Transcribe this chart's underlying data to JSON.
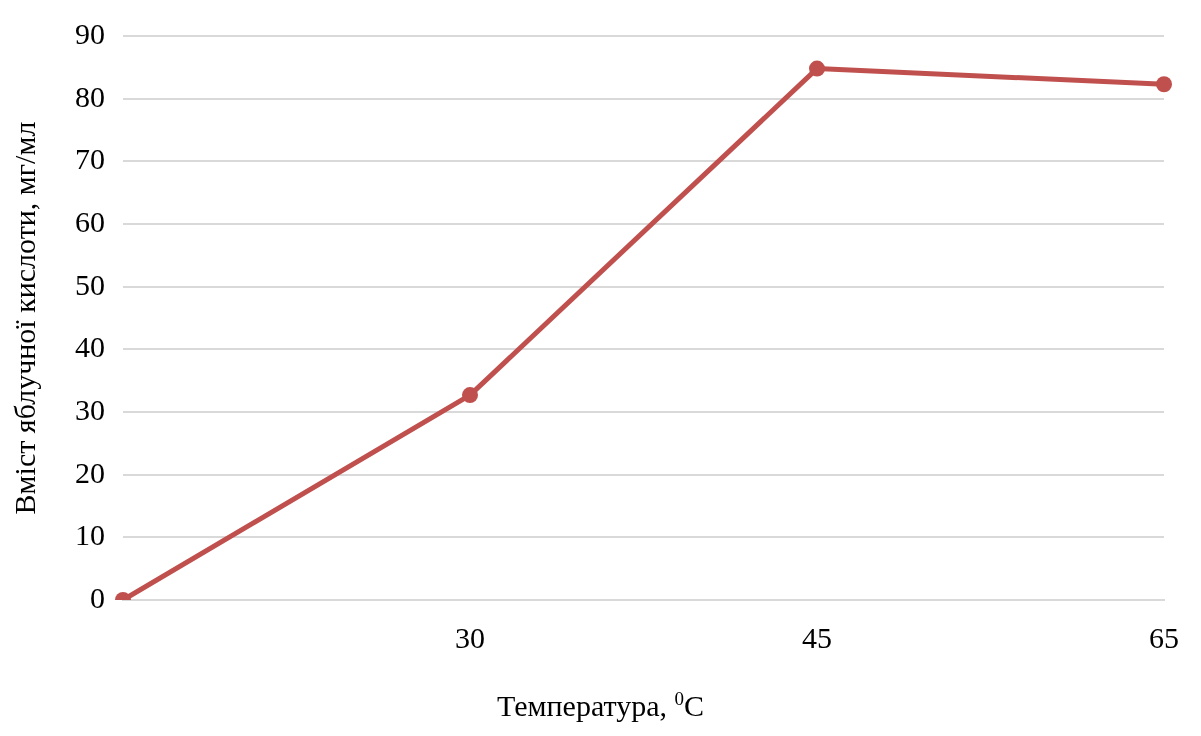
{
  "chart_data": {
    "type": "line",
    "xlabel": "Температура, $^{0}$C",
    "ylabel": "Вміст яблучної кислоти, мг/мл",
    "categories": [
      null,
      "30",
      "45",
      "65"
    ],
    "series": [
      {
        "color": "#c0504d",
        "values": [
          0,
          32.7,
          84.8,
          82.3
        ]
      }
    ],
    "ylim": [
      0,
      90
    ],
    "yticks": [
      0,
      10,
      20,
      30,
      40,
      50,
      60,
      70,
      80,
      90
    ],
    "grid": "y",
    "legend": false,
    "marker": "circle",
    "line_style": "solid"
  }
}
